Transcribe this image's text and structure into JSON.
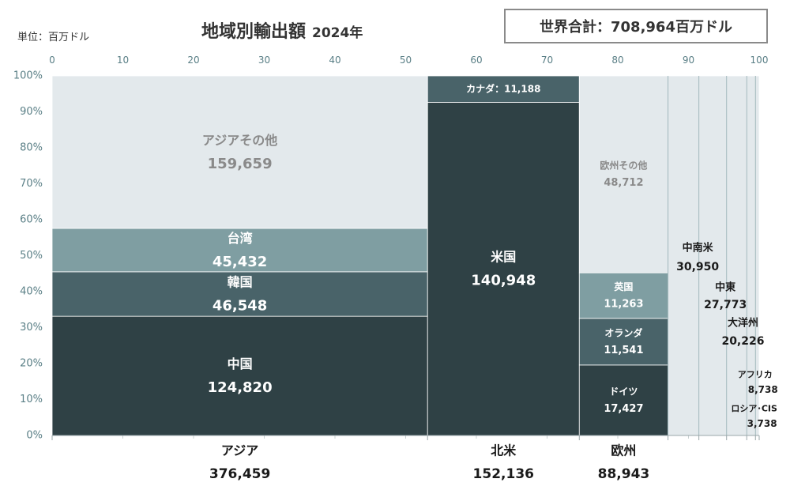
{
  "header": {
    "unit": "単位：百万ドル",
    "title": "地域別輸出額",
    "year": "2024年",
    "total": "世界合計：708,964百万ドル"
  },
  "chart_data": {
    "type": "marimekko",
    "title": "地域別輸出額 2024年",
    "unit": "百万ドル",
    "world_total": 708964,
    "x_axis": {
      "range": [
        0,
        100
      ],
      "ticks": [
        0,
        10,
        20,
        30,
        40,
        50,
        60,
        70,
        80,
        90,
        100
      ]
    },
    "y_axis": {
      "range": [
        0,
        100
      ],
      "ticks": [
        "0%",
        "10%",
        "20%",
        "30%",
        "40%",
        "50%",
        "60%",
        "70%",
        "80%",
        "90%",
        "100%"
      ]
    },
    "colors": {
      "dark": "#2f4145",
      "mid": "#496369",
      "light": "#7f9ea2",
      "pale": "#e3e9ec"
    },
    "regions": [
      {
        "name": "アジア",
        "total": 376459,
        "total_label": "376,459",
        "segments": [
          {
            "name": "中国",
            "value": 124820,
            "label": "124,820",
            "color": "dark"
          },
          {
            "name": "韓国",
            "value": 46548,
            "label": "46,548",
            "color": "mid"
          },
          {
            "name": "台湾",
            "value": 45432,
            "label": "45,432",
            "color": "light"
          },
          {
            "name": "アジアその他",
            "value": 159659,
            "label": "159,659",
            "color": "pale"
          }
        ]
      },
      {
        "name": "北米",
        "total": 152136,
        "total_label": "152,136",
        "segments": [
          {
            "name": "米国",
            "value": 140948,
            "label": "140,948",
            "color": "dark"
          },
          {
            "name": "カナダ",
            "value": 11188,
            "label": "11,188",
            "color": "mid"
          }
        ]
      },
      {
        "name": "欧州",
        "total": 88943,
        "total_label": "88,943",
        "segments": [
          {
            "name": "ドイツ",
            "value": 17427,
            "label": "17,427",
            "color": "dark"
          },
          {
            "name": "オランダ",
            "value": 11541,
            "label": "11,541",
            "color": "mid"
          },
          {
            "name": "英国",
            "value": 11263,
            "label": "11,263",
            "color": "light"
          },
          {
            "name": "欧州その他",
            "value": 48712,
            "label": "48,712",
            "color": "pale"
          }
        ]
      },
      {
        "name": "中南米",
        "total": 30950,
        "total_label": "30,950",
        "segments": [
          {
            "name": "中南米",
            "value": 30950,
            "color": "pale"
          }
        ]
      },
      {
        "name": "中東",
        "total": 27773,
        "total_label": "27,773",
        "segments": [
          {
            "name": "中東",
            "value": 27773,
            "color": "pale"
          }
        ]
      },
      {
        "name": "大洋州",
        "total": 20226,
        "total_label": "20,226",
        "segments": [
          {
            "name": "大洋州",
            "value": 20226,
            "color": "pale"
          }
        ]
      },
      {
        "name": "アフリカ",
        "total": 8738,
        "total_label": "8,738",
        "segments": [
          {
            "name": "アフリカ",
            "value": 8738,
            "color": "pale"
          }
        ]
      },
      {
        "name": "ロシア･CIS",
        "total": 3738,
        "total_label": "3,738",
        "segments": [
          {
            "name": "ロシア･CIS",
            "value": 3738,
            "color": "pale"
          }
        ]
      }
    ]
  }
}
